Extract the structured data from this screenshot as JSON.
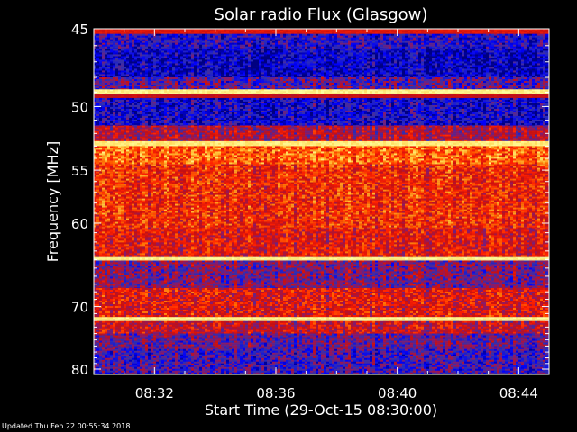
{
  "chart_data": {
    "type": "heatmap",
    "title": "Solar radio Flux (Glasgow)",
    "xlabel": "Start Time (29-Oct-15 08:30:00)",
    "ylabel": "Frequency [MHz]",
    "x_ticks": [
      "08:32",
      "08:36",
      "08:40",
      "08:44"
    ],
    "x_tick_minutes": [
      2,
      6,
      10,
      14
    ],
    "xlim_minutes": [
      0,
      15
    ],
    "y_ticks": [
      45,
      50,
      55,
      60,
      70,
      80
    ],
    "ylim": [
      45,
      81
    ],
    "y_scale": "reciprocal",
    "colormap": [
      "#000080",
      "#0000ff",
      "#3030b0",
      "#8a1a6a",
      "#c81010",
      "#ff2000",
      "#ff6a00",
      "#ffcc40",
      "#ffffa0"
    ],
    "bands": [
      {
        "from": 45.0,
        "to": 45.3,
        "level": 0.55
      },
      {
        "from": 45.3,
        "to": 46.2,
        "level": 0.2
      },
      {
        "from": 46.2,
        "to": 48.0,
        "level": 0.1
      },
      {
        "from": 48.0,
        "to": 48.8,
        "level": 0.3
      },
      {
        "from": 48.8,
        "to": 49.1,
        "level": 0.97
      },
      {
        "from": 49.1,
        "to": 49.4,
        "level": 0.5
      },
      {
        "from": 49.4,
        "to": 51.4,
        "level": 0.15
      },
      {
        "from": 51.4,
        "to": 52.6,
        "level": 0.45
      },
      {
        "from": 52.6,
        "to": 53.0,
        "level": 0.95
      },
      {
        "from": 53.0,
        "to": 54.5,
        "level": 0.72
      },
      {
        "from": 54.5,
        "to": 60.5,
        "level": 0.62
      },
      {
        "from": 60.5,
        "to": 63.6,
        "level": 0.55
      },
      {
        "from": 63.6,
        "to": 64.1,
        "level": 0.97
      },
      {
        "from": 64.1,
        "to": 67.5,
        "level": 0.35
      },
      {
        "from": 67.5,
        "to": 71.5,
        "level": 0.55
      },
      {
        "from": 71.5,
        "to": 72.1,
        "level": 0.97
      },
      {
        "from": 72.1,
        "to": 74.0,
        "level": 0.5
      },
      {
        "from": 74.0,
        "to": 76.5,
        "level": 0.32
      },
      {
        "from": 76.5,
        "to": 81.0,
        "level": 0.25
      }
    ]
  },
  "footer": "Updated Thu Feb 22 00:55:34 2018"
}
